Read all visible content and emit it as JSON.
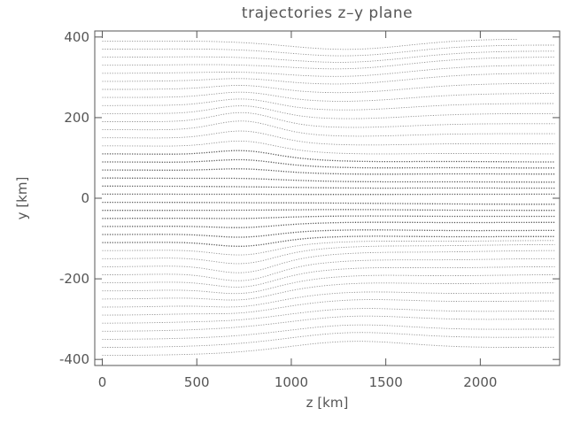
{
  "chart_data": {
    "type": "scatter",
    "title": "trajectories z–y plane",
    "xlabel": "z [km]",
    "ylabel": "y [km]",
    "xlim": [
      -40,
      2420
    ],
    "ylim": [
      -415,
      415
    ],
    "xticks": [
      0,
      500,
      1000,
      1500,
      2000
    ],
    "yticks": [
      -400,
      -200,
      0,
      200,
      400
    ],
    "xtick_labels": [
      "0",
      "500",
      "1000",
      "1500",
      "2000"
    ],
    "ytick_labels": [
      "-400",
      "-200",
      "0",
      "200",
      "400"
    ],
    "grid": false,
    "legend": "none",
    "marker_color": "#333333",
    "series": [
      {
        "y0": -390,
        "y_end": -370,
        "z_end": 2400
      },
      {
        "y0": -370,
        "y_end": -345,
        "z_end": 2400
      },
      {
        "y0": -350,
        "y_end": -325,
        "z_end": 2400
      },
      {
        "y0": -330,
        "y_end": -300,
        "z_end": 2400
      },
      {
        "y0": -310,
        "y_end": -280,
        "z_end": 2400
      },
      {
        "y0": -290,
        "y_end": -255,
        "z_end": 2400
      },
      {
        "y0": -270,
        "y_end": -235,
        "z_end": 2400
      },
      {
        "y0": -250,
        "y_end": -210,
        "z_end": 2400
      },
      {
        "y0": -230,
        "y_end": -190,
        "z_end": 2400
      },
      {
        "y0": -210,
        "y_end": -170,
        "z_end": 2400
      },
      {
        "y0": -190,
        "y_end": -150,
        "z_end": 2400
      },
      {
        "y0": -170,
        "y_end": -130,
        "z_end": 2400
      },
      {
        "y0": -150,
        "y_end": -115,
        "z_end": 2400
      },
      {
        "y0": -130,
        "y_end": -105,
        "z_end": 2400
      },
      {
        "y0": -110,
        "y_end": -95,
        "z_end": 2400
      },
      {
        "y0": -90,
        "y_end": -80,
        "z_end": 2400
      },
      {
        "y0": -70,
        "y_end": -60,
        "z_end": 2400
      },
      {
        "y0": -50,
        "y_end": -45,
        "z_end": 2400
      },
      {
        "y0": -30,
        "y_end": -30,
        "z_end": 2400
      },
      {
        "y0": -10,
        "y_end": -15,
        "z_end": 2400
      },
      {
        "y0": 10,
        "y_end": 10,
        "z_end": 2400
      },
      {
        "y0": 30,
        "y_end": 25,
        "z_end": 2400
      },
      {
        "y0": 50,
        "y_end": 40,
        "z_end": 2400
      },
      {
        "y0": 70,
        "y_end": 60,
        "z_end": 2400
      },
      {
        "y0": 90,
        "y_end": 75,
        "z_end": 2400
      },
      {
        "y0": 110,
        "y_end": 90,
        "z_end": 2400
      },
      {
        "y0": 130,
        "y_end": 110,
        "z_end": 2400
      },
      {
        "y0": 150,
        "y_end": 135,
        "z_end": 2400
      },
      {
        "y0": 170,
        "y_end": 160,
        "z_end": 2400
      },
      {
        "y0": 190,
        "y_end": 185,
        "z_end": 2400
      },
      {
        "y0": 210,
        "y_end": 210,
        "z_end": 2400
      },
      {
        "y0": 230,
        "y_end": 235,
        "z_end": 2400
      },
      {
        "y0": 250,
        "y_end": 260,
        "z_end": 2400
      },
      {
        "y0": 270,
        "y_end": 285,
        "z_end": 2400
      },
      {
        "y0": 290,
        "y_end": 310,
        "z_end": 2400
      },
      {
        "y0": 310,
        "y_end": 330,
        "z_end": 2400
      },
      {
        "y0": 330,
        "y_end": 350,
        "z_end": 2400
      },
      {
        "y0": 350,
        "y_end": 365,
        "z_end": 2400
      },
      {
        "y0": 370,
        "y_end": 380,
        "z_end": 2400
      },
      {
        "y0": 390,
        "y_end": 395,
        "z_end": 2200
      }
    ]
  }
}
